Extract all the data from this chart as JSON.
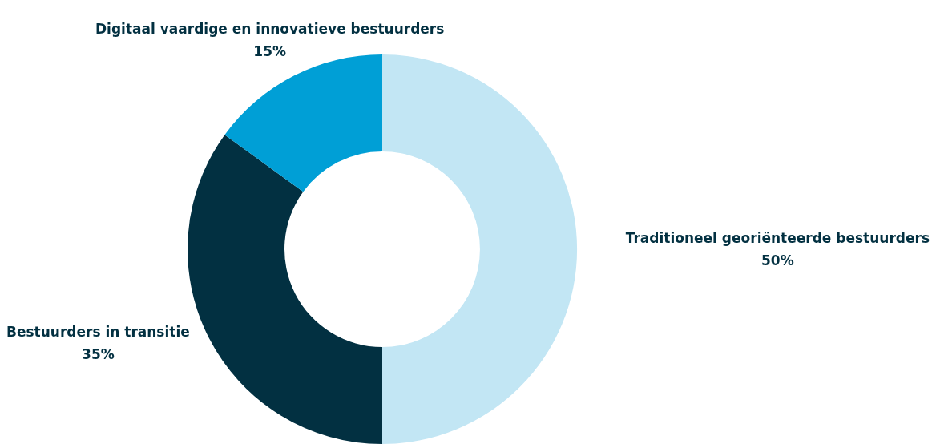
{
  "chart_data": {
    "type": "donut",
    "categories": [
      "Traditioneel georiënteerde bestuurders",
      "Bestuurders in transitie",
      "Digitaal vaardige en innovatieve bestuurders"
    ],
    "values": [
      50,
      35,
      15
    ],
    "colors": [
      "#c2e6f4",
      "#023041",
      "#009fd6"
    ],
    "value_labels": [
      "50%",
      "35%",
      "15%"
    ],
    "legend": false
  }
}
